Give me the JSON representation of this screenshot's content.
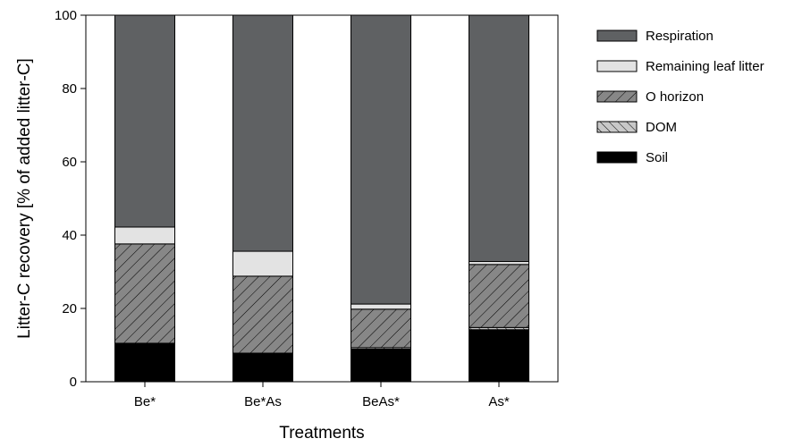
{
  "chart_data": {
    "type": "bar",
    "stacked": true,
    "xlabel": "Treatments",
    "ylabel": "Litter-C recovery [% of added litter-C]",
    "ylim": [
      0,
      100
    ],
    "yticks": [
      0,
      20,
      40,
      60,
      80,
      100
    ],
    "grid": false,
    "legend_position": "right",
    "categories": [
      "Be*",
      "Be*As",
      "BeAs*",
      "As*"
    ],
    "series": [
      {
        "name": "Soil",
        "values": [
          10.3,
          7.6,
          8.9,
          14.2
        ],
        "color": "#000000",
        "pattern": "solid"
      },
      {
        "name": "DOM",
        "values": [
          0.2,
          0.2,
          0.4,
          0.6
        ],
        "color": "#c8c8c8",
        "pattern": "backslash-hatch"
      },
      {
        "name": "O horizon",
        "values": [
          27.1,
          21.0,
          10.5,
          17.2
        ],
        "color": "#878787",
        "pattern": "slash-hatch"
      },
      {
        "name": "Remaining leaf litter",
        "values": [
          4.6,
          6.8,
          1.4,
          0.8
        ],
        "color": "#e3e3e3",
        "pattern": "solid"
      },
      {
        "name": "Respiration",
        "values": [
          57.8,
          64.4,
          78.8,
          67.2
        ],
        "color": "#5f6163",
        "pattern": "solid"
      }
    ],
    "legend_order": [
      "Respiration",
      "Remaining leaf litter",
      "O horizon",
      "DOM",
      "Soil"
    ]
  }
}
